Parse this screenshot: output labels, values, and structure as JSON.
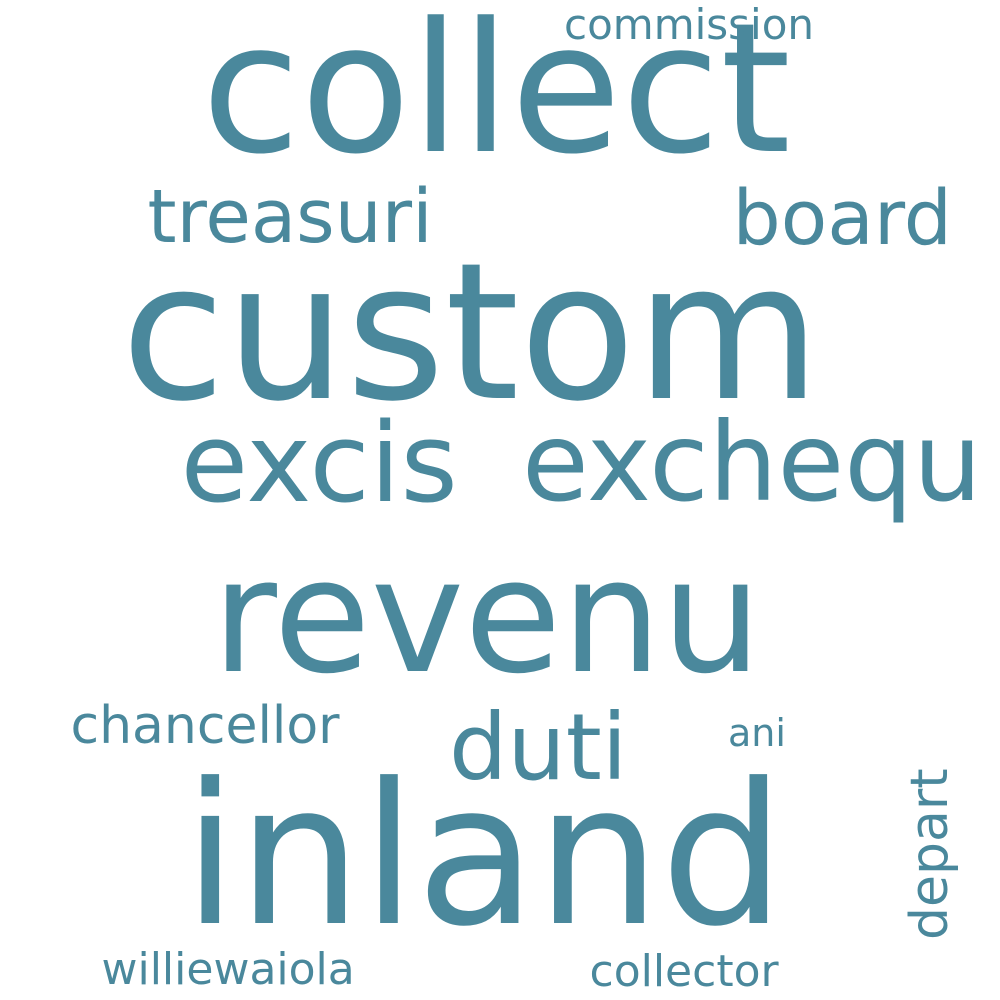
{
  "word_cloud": {
    "color": "#4a889c",
    "background": "#ffffff",
    "words": [
      {
        "key": "collect",
        "text": "collect",
        "rotated": false
      },
      {
        "key": "custom",
        "text": "custom",
        "rotated": false
      },
      {
        "key": "revenu",
        "text": "revenu",
        "rotated": false
      },
      {
        "key": "inland",
        "text": "inland",
        "rotated": false
      },
      {
        "key": "excis",
        "text": "excis",
        "rotated": false
      },
      {
        "key": "exchequ",
        "text": "exchequ",
        "rotated": false
      },
      {
        "key": "treasuri",
        "text": "treasuri",
        "rotated": false
      },
      {
        "key": "board",
        "text": "board",
        "rotated": false
      },
      {
        "key": "duti",
        "text": "duti",
        "rotated": false
      },
      {
        "key": "chancellor",
        "text": "chancellor",
        "rotated": false
      },
      {
        "key": "commission",
        "text": "commission",
        "rotated": false
      },
      {
        "key": "ani",
        "text": "ani",
        "rotated": false
      },
      {
        "key": "depart",
        "text": "depart",
        "rotated": true
      },
      {
        "key": "williewaiola",
        "text": "williewaiola",
        "rotated": false
      },
      {
        "key": "collector",
        "text": "collector",
        "rotated": false
      }
    ]
  }
}
